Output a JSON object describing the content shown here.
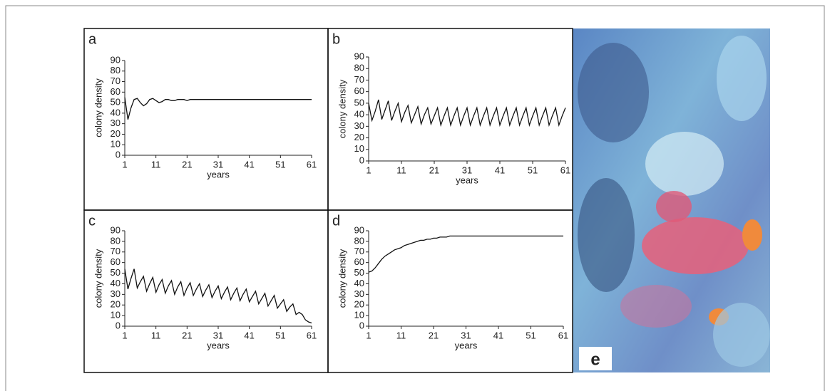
{
  "chart_data": [
    {
      "type": "line",
      "panel_label": "a",
      "ylabel": "colony density",
      "xlabel": "years",
      "color": "#111",
      "xlim": [
        1,
        61
      ],
      "ylim": [
        0,
        90
      ],
      "xticks": [
        1,
        11,
        21,
        31,
        41,
        51,
        61
      ],
      "yticks": [
        0,
        10,
        20,
        30,
        40,
        50,
        60,
        70,
        80,
        90
      ],
      "x": [
        1,
        2,
        3,
        4,
        5,
        6,
        7,
        8,
        9,
        10,
        11,
        12,
        13,
        14,
        15,
        16,
        17,
        18,
        19,
        20,
        21,
        22,
        23,
        24,
        25,
        26,
        27,
        28,
        29,
        30,
        31,
        32,
        33,
        34,
        35,
        36,
        37,
        38,
        39,
        40,
        41,
        42,
        43,
        44,
        45,
        46,
        47,
        48,
        49,
        50,
        51,
        52,
        53,
        54,
        55,
        56,
        57,
        58,
        59,
        60,
        61
      ],
      "values": [
        55,
        34,
        45,
        53,
        54,
        50,
        47,
        49,
        53,
        54,
        52,
        50,
        51,
        53,
        53,
        52,
        52,
        53,
        53,
        53,
        52,
        53,
        53,
        53,
        53,
        53,
        53,
        53,
        53,
        53,
        53,
        53,
        53,
        53,
        53,
        53,
        53,
        53,
        53,
        53,
        53,
        53,
        53,
        53,
        53,
        53,
        53,
        53,
        53,
        53,
        53,
        53,
        53,
        53,
        53,
        53,
        53,
        53,
        53,
        53,
        53
      ]
    },
    {
      "type": "line",
      "panel_label": "b",
      "ylabel": "colony density",
      "xlabel": "years",
      "color": "#111",
      "xlim": [
        1,
        61
      ],
      "ylim": [
        0,
        90
      ],
      "xticks": [
        1,
        11,
        21,
        31,
        41,
        51,
        61
      ],
      "yticks": [
        0,
        10,
        20,
        30,
        40,
        50,
        60,
        70,
        80,
        90
      ],
      "x": [
        1,
        2,
        3,
        4,
        5,
        6,
        7,
        8,
        9,
        10,
        11,
        12,
        13,
        14,
        15,
        16,
        17,
        18,
        19,
        20,
        21,
        22,
        23,
        24,
        25,
        26,
        27,
        28,
        29,
        30,
        31,
        32,
        33,
        34,
        35,
        36,
        37,
        38,
        39,
        40,
        41,
        42,
        43,
        44,
        45,
        46,
        47,
        48,
        49,
        50,
        51,
        52,
        53,
        54,
        55,
        56,
        57,
        58,
        59,
        60,
        61
      ],
      "values": [
        50,
        35,
        43,
        53,
        36,
        44,
        52,
        35,
        43,
        50,
        34,
        42,
        48,
        33,
        40,
        47,
        32,
        40,
        46,
        32,
        39,
        46,
        31,
        39,
        46,
        31,
        39,
        46,
        31,
        39,
        46,
        31,
        39,
        46,
        31,
        39,
        46,
        31,
        39,
        46,
        31,
        39,
        46,
        31,
        39,
        46,
        31,
        39,
        46,
        31,
        39,
        46,
        31,
        39,
        46,
        31,
        39,
        46,
        31,
        39,
        46
      ]
    },
    {
      "type": "line",
      "panel_label": "c",
      "ylabel": "colony density",
      "xlabel": "years",
      "color": "#111",
      "xlim": [
        1,
        61
      ],
      "ylim": [
        0,
        90
      ],
      "xticks": [
        1,
        11,
        21,
        31,
        41,
        51,
        61
      ],
      "yticks": [
        0,
        10,
        20,
        30,
        40,
        50,
        60,
        70,
        80,
        90
      ],
      "x": [
        1,
        2,
        3,
        4,
        5,
        6,
        7,
        8,
        9,
        10,
        11,
        12,
        13,
        14,
        15,
        16,
        17,
        18,
        19,
        20,
        21,
        22,
        23,
        24,
        25,
        26,
        27,
        28,
        29,
        30,
        31,
        32,
        33,
        34,
        35,
        36,
        37,
        38,
        39,
        40,
        41,
        42,
        43,
        44,
        45,
        46,
        47,
        48,
        49,
        50,
        51,
        52,
        53,
        54,
        55,
        56,
        57,
        58,
        59,
        60,
        61
      ],
      "values": [
        54,
        35,
        45,
        54,
        36,
        42,
        47,
        33,
        40,
        46,
        32,
        39,
        44,
        31,
        38,
        43,
        30,
        37,
        42,
        29,
        36,
        41,
        29,
        35,
        40,
        28,
        34,
        39,
        27,
        33,
        38,
        26,
        32,
        37,
        25,
        31,
        36,
        24,
        30,
        35,
        23,
        28,
        33,
        21,
        26,
        31,
        19,
        24,
        29,
        17,
        21,
        25,
        14,
        18,
        21,
        11,
        13,
        11,
        6,
        4,
        3
      ]
    },
    {
      "type": "line",
      "panel_label": "d",
      "ylabel": "colony density",
      "xlabel": "years",
      "color": "#111",
      "xlim": [
        1,
        61
      ],
      "ylim": [
        0,
        90
      ],
      "xticks": [
        1,
        11,
        21,
        31,
        41,
        51,
        61
      ],
      "yticks": [
        0,
        10,
        20,
        30,
        40,
        50,
        60,
        70,
        80,
        90
      ],
      "x": [
        1,
        2,
        3,
        4,
        5,
        6,
        7,
        8,
        9,
        10,
        11,
        12,
        13,
        14,
        15,
        16,
        17,
        18,
        19,
        20,
        21,
        22,
        23,
        24,
        25,
        26,
        27,
        28,
        29,
        30,
        31,
        32,
        33,
        34,
        35,
        36,
        37,
        38,
        39,
        40,
        41,
        42,
        43,
        44,
        45,
        46,
        47,
        48,
        49,
        50,
        51,
        52,
        53,
        54,
        55,
        56,
        57,
        58,
        59,
        60,
        61
      ],
      "values": [
        51,
        52,
        55,
        59,
        63,
        66,
        68,
        70,
        72,
        73,
        74,
        76,
        77,
        78,
        79,
        80,
        81,
        81,
        82,
        82,
        83,
        83,
        84,
        84,
        84,
        85,
        85,
        85,
        85,
        85,
        85,
        85,
        85,
        85,
        85,
        85,
        85,
        85,
        85,
        85,
        85,
        85,
        85,
        85,
        85,
        85,
        85,
        85,
        85,
        85,
        85,
        85,
        85,
        85,
        85,
        85,
        85,
        85,
        85,
        85,
        85
      ]
    }
  ],
  "photo": {
    "label": "e"
  }
}
